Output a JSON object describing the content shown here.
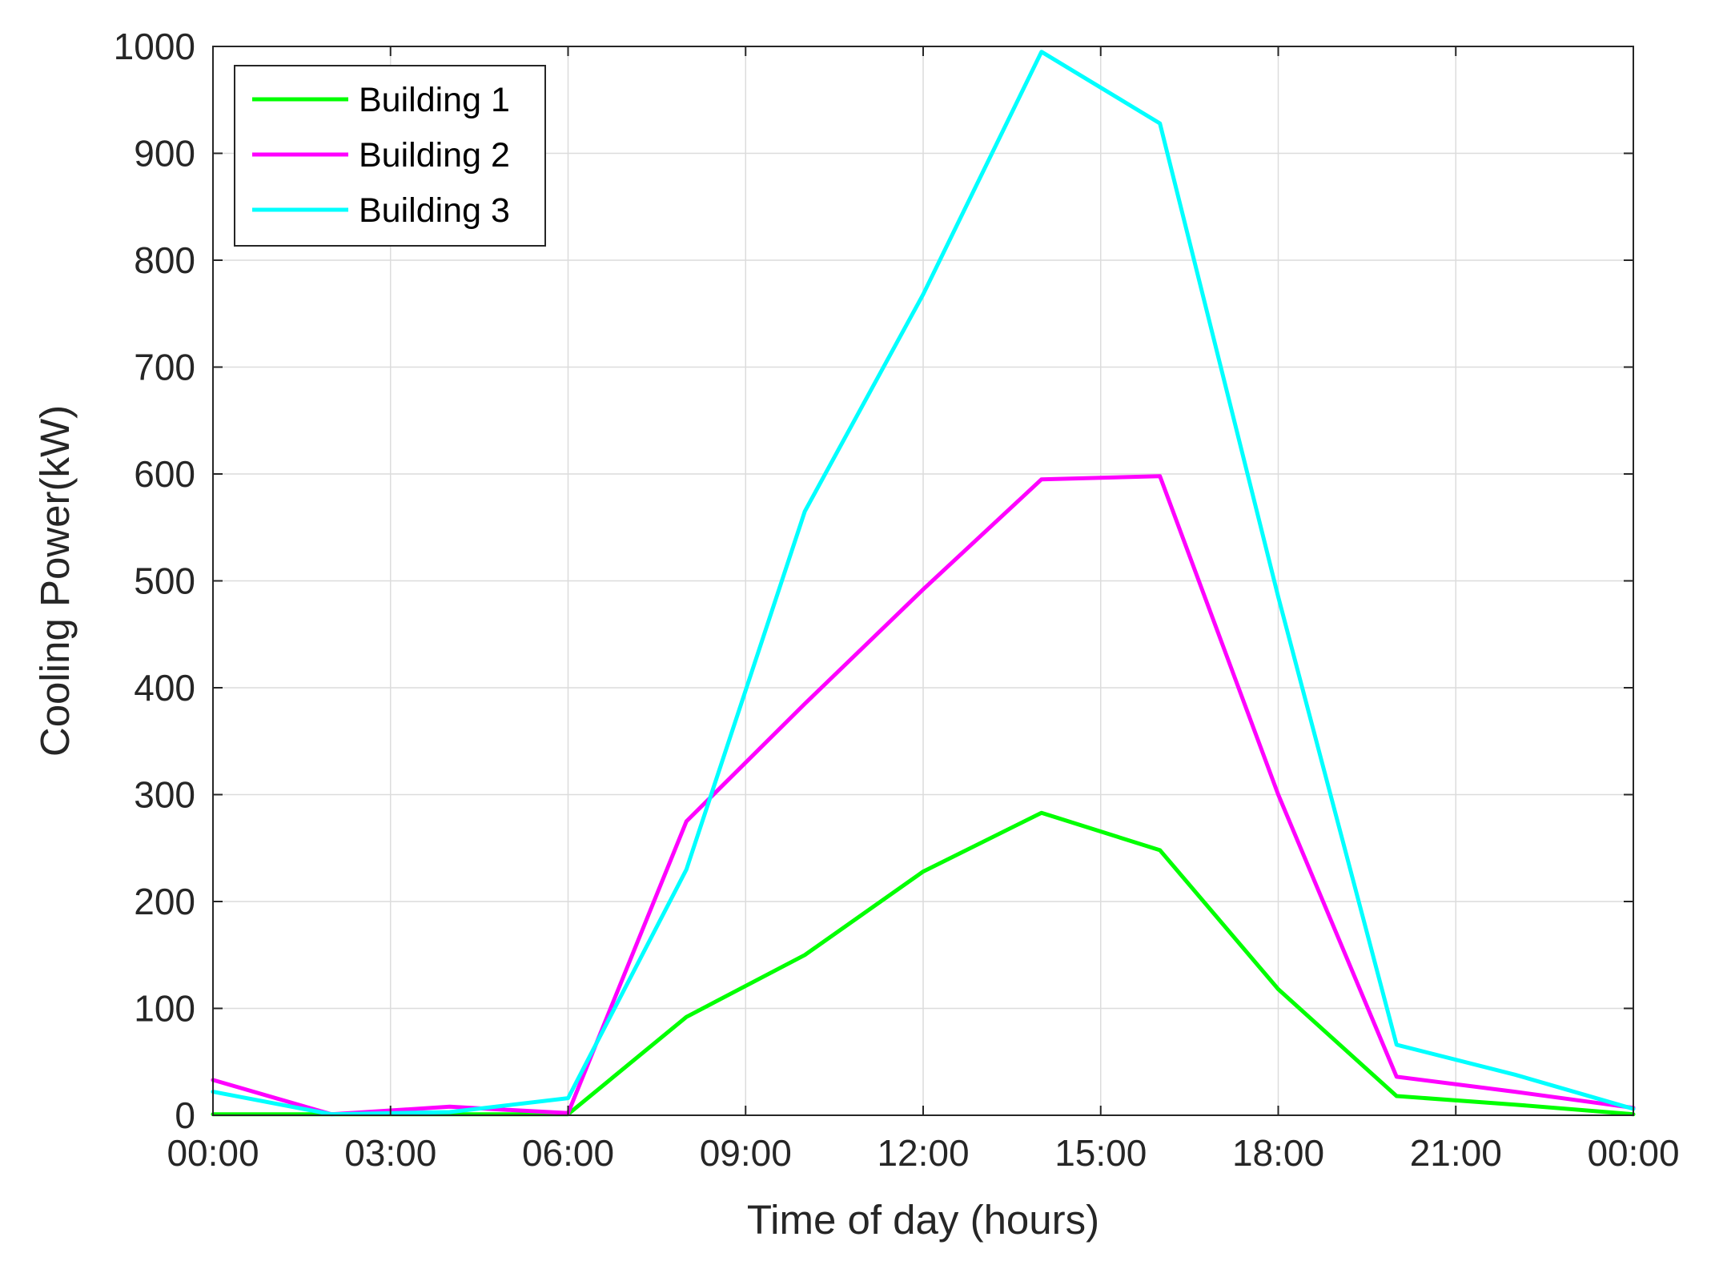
{
  "chart_data": {
    "type": "line",
    "xlabel": "Time of day (hours)",
    "ylabel": "Cooling Power(kW)",
    "xlim": [
      0,
      24
    ],
    "ylim": [
      0,
      1000
    ],
    "x_ticks": [
      0,
      3,
      6,
      9,
      12,
      15,
      18,
      21,
      24
    ],
    "x_tick_labels": [
      "00:00",
      "03:00",
      "06:00",
      "09:00",
      "12:00",
      "15:00",
      "18:00",
      "21:00",
      "00:00"
    ],
    "y_ticks": [
      0,
      100,
      200,
      300,
      400,
      500,
      600,
      700,
      800,
      900,
      1000
    ],
    "y_tick_labels": [
      "0",
      "100",
      "200",
      "300",
      "400",
      "500",
      "600",
      "700",
      "800",
      "900",
      "1000"
    ],
    "grid": true,
    "legend_position": "top-left",
    "x": [
      0,
      2,
      4,
      6,
      8,
      10,
      12,
      14,
      16,
      18,
      20,
      22,
      24
    ],
    "series": [
      {
        "name": "Building 1",
        "color": "#00ff00",
        "values": [
          1,
          1,
          1,
          1,
          92,
          150,
          228,
          283,
          248,
          118,
          18,
          10,
          1
        ]
      },
      {
        "name": "Building 2",
        "color": "#ff00ff",
        "values": [
          33,
          1,
          8,
          2,
          275,
          385,
          492,
          595,
          598,
          300,
          36,
          22,
          7
        ]
      },
      {
        "name": "Building 3",
        "color": "#00ffff",
        "values": [
          22,
          1,
          3,
          16,
          230,
          565,
          768,
          995,
          928,
          485,
          66,
          38,
          6
        ]
      }
    ]
  }
}
